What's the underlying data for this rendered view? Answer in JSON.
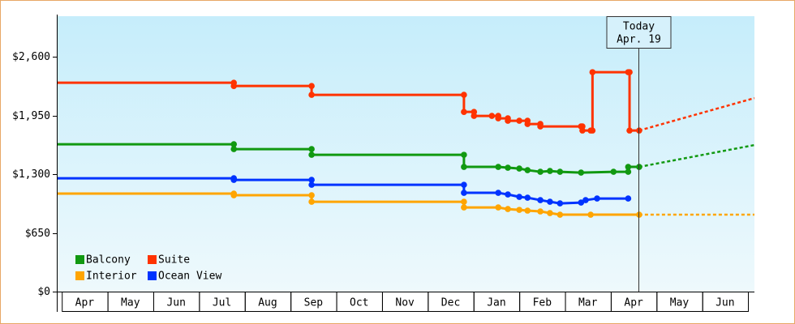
{
  "chart_data": {
    "type": "line",
    "step": true,
    "categories": [
      "Apr",
      "May",
      "Jun",
      "Jul",
      "Aug",
      "Sep",
      "Oct",
      "Nov",
      "Dec",
      "Jan",
      "Feb",
      "Mar",
      "Apr",
      "May",
      "Jun"
    ],
    "xlim": [
      -0.11,
      15.14
    ],
    "ylim": [
      0,
      3050
    ],
    "yticks": [
      {
        "value": 0,
        "label": "$0"
      },
      {
        "value": 650,
        "label": "$650"
      },
      {
        "value": 1300,
        "label": "$1,300"
      },
      {
        "value": 1950,
        "label": "$1,950"
      },
      {
        "value": 2600,
        "label": "$2,600"
      }
    ],
    "legend": "bottom-left",
    "series": [
      {
        "name": "Balcony",
        "color": "#119911",
        "x": [
          -0.11,
          3.76,
          3.76,
          5.46,
          5.46,
          8.79,
          8.79,
          9.54,
          9.75,
          10.0,
          10.18,
          10.46,
          10.67,
          10.89,
          11.35,
          12.06,
          12.38,
          12.38,
          12.62
        ],
        "values": [
          1632,
          1632,
          1578,
          1578,
          1515,
          1515,
          1381,
          1381,
          1372,
          1363,
          1345,
          1327,
          1336,
          1327,
          1318,
          1327,
          1327,
          1381,
          1381
        ],
        "projection": {
          "x": [
            12.62,
            15.14
          ],
          "values": [
            1381,
            1623
          ]
        }
      },
      {
        "name": "Suite",
        "color": "#ff3300",
        "x": [
          -0.11,
          3.76,
          3.76,
          5.46,
          5.46,
          8.79,
          8.79,
          9.01,
          9.01,
          9.4,
          9.54,
          9.54,
          9.75,
          9.75,
          10.0,
          10.18,
          10.18,
          10.46,
          10.46,
          11.35,
          11.38,
          11.38,
          11.56,
          11.6,
          11.6,
          12.38,
          12.41,
          12.41,
          12.62
        ],
        "values": [
          2313,
          2313,
          2277,
          2277,
          2179,
          2179,
          1990,
          1990,
          1946,
          1946,
          1946,
          1919,
          1919,
          1892,
          1892,
          1892,
          1856,
          1856,
          1829,
          1829,
          1829,
          1784,
          1784,
          1784,
          2430,
          2430,
          2430,
          1784,
          1784
        ],
        "projection": {
          "x": [
            12.62,
            15.14
          ],
          "values": [
            1784,
            2143
          ]
        }
      },
      {
        "name": "Interior",
        "color": "#ffa500",
        "x": [
          -0.11,
          3.76,
          3.76,
          5.46,
          5.46,
          8.79,
          8.79,
          9.54,
          9.75,
          10.0,
          10.18,
          10.46,
          10.67,
          10.89,
          11.56,
          12.62
        ],
        "values": [
          1085,
          1085,
          1067,
          1067,
          995,
          995,
          932,
          932,
          914,
          905,
          897,
          888,
          870,
          852,
          852,
          852
        ],
        "projection": {
          "x": [
            12.62,
            15.14
          ],
          "values": [
            852,
            852
          ]
        }
      },
      {
        "name": "Ocean View",
        "color": "#0033ff",
        "x": [
          -0.11,
          3.76,
          3.76,
          5.46,
          5.46,
          8.79,
          8.79,
          9.54,
          9.75,
          10.0,
          10.18,
          10.46,
          10.67,
          10.89,
          11.35,
          11.45,
          11.7,
          12.38
        ],
        "values": [
          1255,
          1255,
          1237,
          1237,
          1183,
          1183,
          1094,
          1094,
          1076,
          1049,
          1040,
          1013,
          995,
          977,
          986,
          1013,
          1031,
          1031
        ]
      }
    ],
    "annotation": {
      "x": 12.6,
      "lines": [
        "Today",
        "Apr. 19"
      ]
    }
  }
}
